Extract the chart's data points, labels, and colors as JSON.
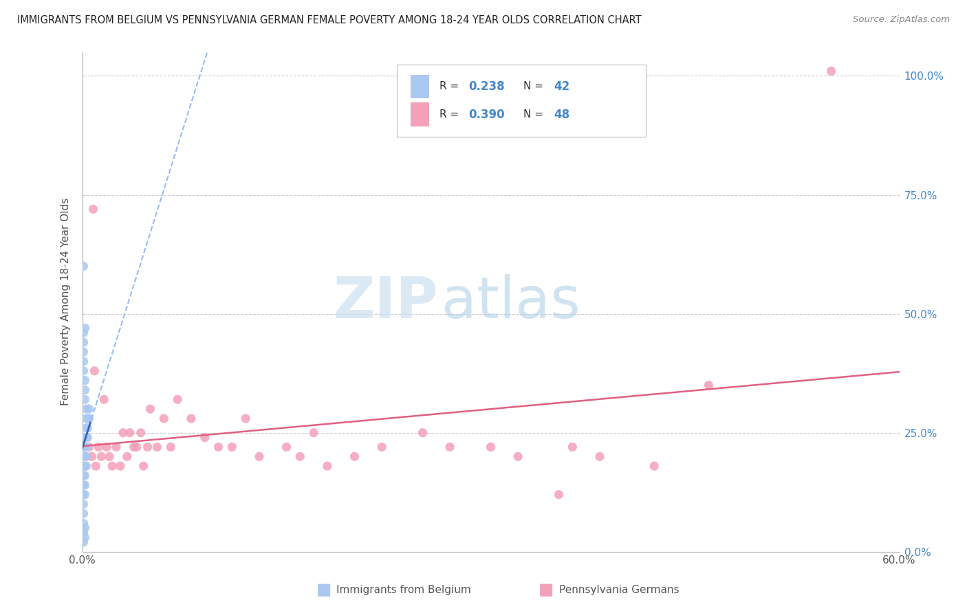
{
  "title": "IMMIGRANTS FROM BELGIUM VS PENNSYLVANIA GERMAN FEMALE POVERTY AMONG 18-24 YEAR OLDS CORRELATION CHART",
  "source": "Source: ZipAtlas.com",
  "ylabel": "Female Poverty Among 18-24 Year Olds",
  "xlim": [
    0.0,
    0.6
  ],
  "ylim": [
    0.0,
    1.05
  ],
  "background_color": "#ffffff",
  "grid_color": "#cccccc",
  "watermark_zip_color": "#cce0f0",
  "watermark_atlas_color": "#b8d0e8",
  "series1_label": "Immigrants from Belgium",
  "series1_color": "#aac8f0",
  "series1_line_color_solid": "#3366bb",
  "series1_line_color_dashed": "#99bbee",
  "series2_label": "Pennsylvania Germans",
  "series2_color": "#f4a0b8",
  "series2_line_color": "#e06080",
  "legend_value_color": "#4488cc",
  "legend_label_color": "#333333",
  "right_tick_color": "#4488cc",
  "title_color": "#222222",
  "source_color": "#888888",
  "ylabel_color": "#555555",
  "xtick_color": "#555555",
  "belgium_x": [
    0.001,
    0.001,
    0.001,
    0.001,
    0.001,
    0.001,
    0.001,
    0.001,
    0.002,
    0.002,
    0.002,
    0.002,
    0.002,
    0.002,
    0.002,
    0.003,
    0.003,
    0.003,
    0.003,
    0.003,
    0.004,
    0.004,
    0.004,
    0.005,
    0.005,
    0.001,
    0.001,
    0.001,
    0.001,
    0.001,
    0.002,
    0.002,
    0.002,
    0.003,
    0.003,
    0.001,
    0.002,
    0.001,
    0.002,
    0.001,
    0.001,
    0.002
  ],
  "belgium_y": [
    0.22,
    0.2,
    0.18,
    0.16,
    0.14,
    0.12,
    0.1,
    0.08,
    0.24,
    0.22,
    0.2,
    0.18,
    0.16,
    0.14,
    0.12,
    0.26,
    0.24,
    0.22,
    0.2,
    0.18,
    0.28,
    0.26,
    0.24,
    0.3,
    0.28,
    0.46,
    0.44,
    0.42,
    0.4,
    0.38,
    0.36,
    0.34,
    0.32,
    0.3,
    0.28,
    0.06,
    0.05,
    0.04,
    0.03,
    0.02,
    0.6,
    0.47
  ],
  "pagerman_x": [
    0.005,
    0.007,
    0.009,
    0.01,
    0.012,
    0.014,
    0.016,
    0.018,
    0.02,
    0.022,
    0.025,
    0.028,
    0.03,
    0.033,
    0.035,
    0.038,
    0.04,
    0.043,
    0.045,
    0.048,
    0.05,
    0.055,
    0.06,
    0.065,
    0.07,
    0.08,
    0.09,
    0.1,
    0.11,
    0.12,
    0.13,
    0.15,
    0.16,
    0.17,
    0.18,
    0.2,
    0.22,
    0.25,
    0.27,
    0.3,
    0.32,
    0.36,
    0.38,
    0.42,
    0.46,
    0.008,
    0.55,
    0.35
  ],
  "pagerman_y": [
    0.22,
    0.2,
    0.38,
    0.18,
    0.22,
    0.2,
    0.32,
    0.22,
    0.2,
    0.18,
    0.22,
    0.18,
    0.25,
    0.2,
    0.25,
    0.22,
    0.22,
    0.25,
    0.18,
    0.22,
    0.3,
    0.22,
    0.28,
    0.22,
    0.32,
    0.28,
    0.24,
    0.22,
    0.22,
    0.28,
    0.2,
    0.22,
    0.2,
    0.25,
    0.18,
    0.2,
    0.22,
    0.25,
    0.22,
    0.22,
    0.2,
    0.22,
    0.2,
    0.18,
    0.35,
    0.72,
    1.01,
    0.12
  ]
}
